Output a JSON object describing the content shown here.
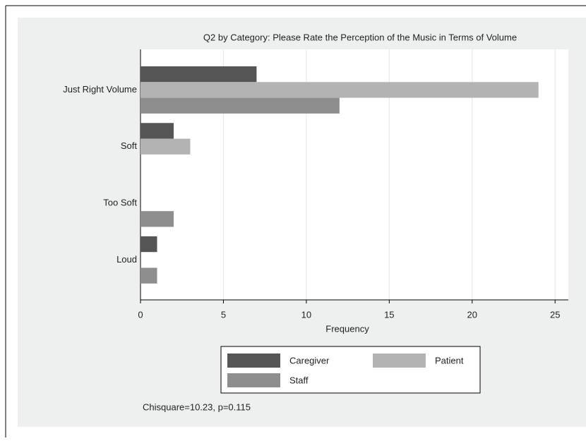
{
  "chart_data": {
    "type": "barh",
    "title": "Q2 by Category: Please Rate the Perception of the Music in Terms of Volume",
    "categories": [
      "Just Right Volume",
      "Soft",
      "Too Soft",
      "Loud"
    ],
    "series": [
      {
        "name": "Caregiver",
        "color": "#555555",
        "values": [
          7,
          2,
          0,
          1
        ]
      },
      {
        "name": "Patient",
        "color": "#b3b3b3",
        "values": [
          24,
          3,
          0,
          0
        ]
      },
      {
        "name": "Staff",
        "color": "#8e8e8e",
        "values": [
          12,
          0,
          2,
          1
        ]
      }
    ],
    "xlabel": "Frequency",
    "xlim": [
      0,
      25.8
    ],
    "xticks": [
      0,
      5,
      10,
      15,
      20,
      25
    ],
    "grid": true,
    "note": "Chisquare=10.23, p=0.115"
  }
}
